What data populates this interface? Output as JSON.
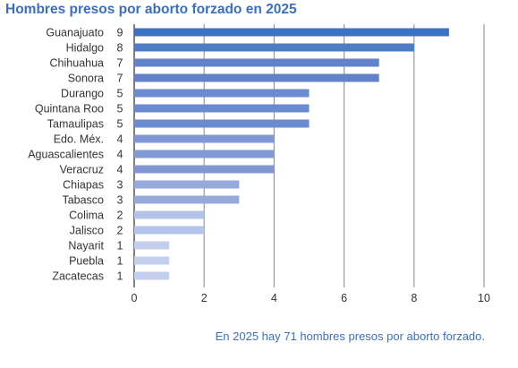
{
  "title": "Hombres presos por aborto forzado en 2025",
  "footnote": "En 2025 hay 71 hombres presos por aborto forzado.",
  "chart_data": {
    "type": "bar",
    "orientation": "horizontal",
    "title": "Hombres presos por aborto forzado en 2025",
    "categories": [
      "Guanajuato",
      "Hidalgo",
      "Chihuahua",
      "Sonora",
      "Durango",
      "Quintana Roo",
      "Tamaulipas",
      "Edo. Méx.",
      "Aguascalientes",
      "Veracruz",
      "Chiapas",
      "Tabasco",
      "Colima",
      "Jalisco",
      "Nayarit",
      "Puebla",
      "Zacatecas"
    ],
    "values": [
      9,
      8,
      7,
      7,
      5,
      5,
      5,
      4,
      4,
      4,
      3,
      3,
      2,
      2,
      1,
      1,
      1
    ],
    "xlim": [
      0,
      10
    ],
    "xticks": [
      0,
      2,
      4,
      6,
      8,
      10
    ],
    "grid": true,
    "bar_colors": [
      "#3a72c4",
      "#4e7cc6",
      "#6381cb",
      "#6381cb",
      "#6c8acf",
      "#6c8acf",
      "#6c8acf",
      "#8098d3",
      "#8098d3",
      "#8098d3",
      "#97a9db",
      "#97a9db",
      "#b4c3e8",
      "#b4c3e8",
      "#c3cfed",
      "#c3cfed",
      "#c3cfed"
    ]
  }
}
